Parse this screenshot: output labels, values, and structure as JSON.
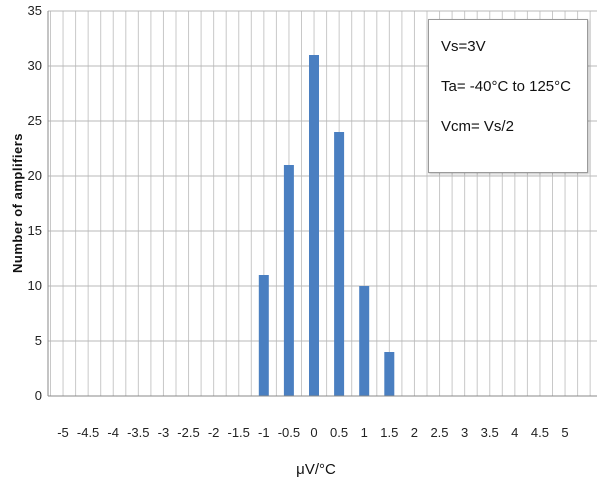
{
  "chart_data": {
    "type": "bar",
    "title": "",
    "xlabel": "μV/°C",
    "ylabel": "Number of amplifiers",
    "x_ticks": [
      "-5",
      "-4.5",
      "-4",
      "-3.5",
      "-3",
      "-2.5",
      "-2",
      "-1.5",
      "-1",
      "-0.5",
      "0",
      "0.5",
      "1",
      "1.5",
      "2",
      "2.5",
      "3",
      "3.5",
      "4",
      "4.5",
      "5"
    ],
    "y_ticks": [
      0,
      5,
      10,
      15,
      20,
      25,
      30,
      35
    ],
    "ylim": [
      0,
      35
    ],
    "xlim": [
      -5,
      5
    ],
    "grid": true,
    "bar_color": "#4a7fc1",
    "x": [
      -1,
      -0.5,
      0,
      0.5,
      1,
      1.5
    ],
    "values": [
      11,
      21,
      31,
      24,
      10,
      4
    ],
    "annotation": [
      "Vs=3V",
      "Ta= -40°C to 125°C",
      "Vcm= Vs/2"
    ]
  }
}
